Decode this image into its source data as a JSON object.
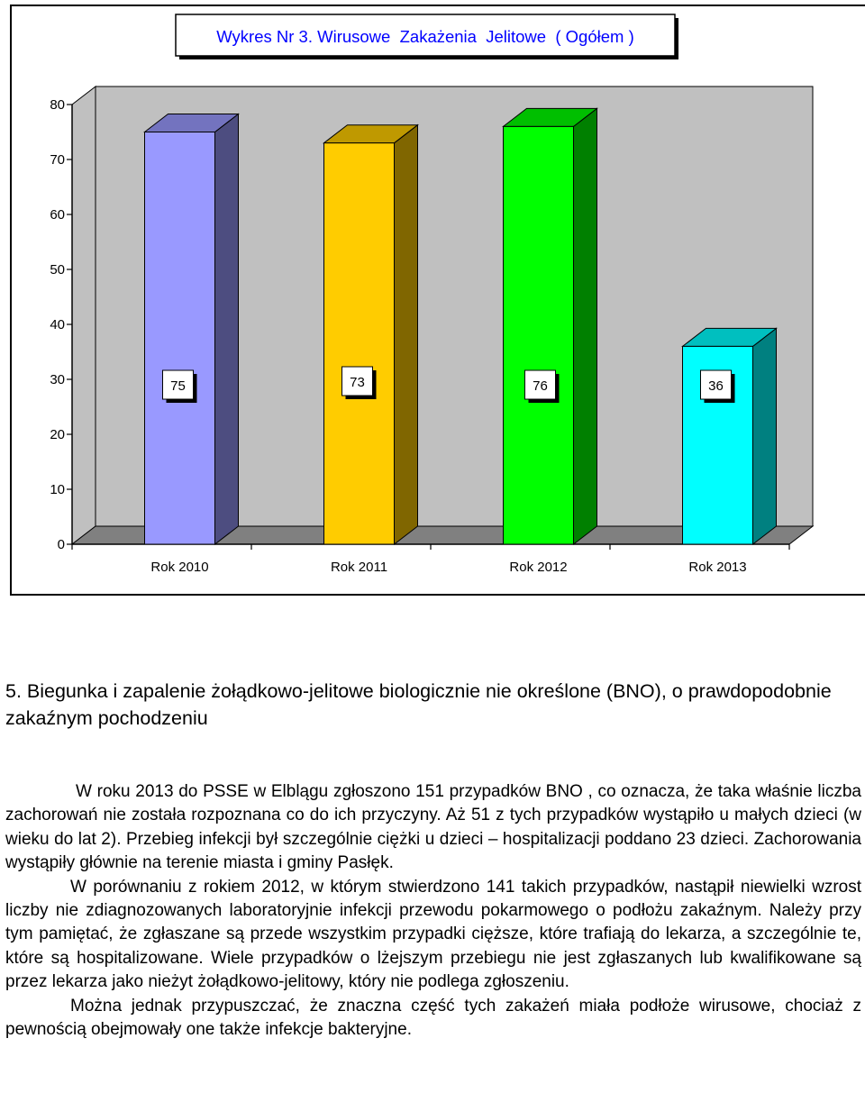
{
  "chart_data": {
    "type": "bar",
    "title": "Wykres Nr 3. Wirusowe  Zakażenia  Jelitowe  ( Ogółem )",
    "categories": [
      "Rok 2010",
      "Rok 2011",
      "Rok 2012",
      "Rok 2013"
    ],
    "values": [
      75,
      73,
      76,
      36
    ],
    "value_labels": [
      "75",
      "73",
      "76",
      "36"
    ],
    "ylim": [
      0,
      80
    ],
    "yticks": [
      "0",
      "10",
      "20",
      "30",
      "40",
      "50",
      "60",
      "70",
      "80"
    ],
    "grid": false,
    "legend": "none",
    "three_d": true,
    "colors": {
      "plot_wall": "#c0c0c0",
      "floor": "#808080",
      "bar_fronts": [
        "#9999ff",
        "#ffcc00",
        "#00ff00",
        "#00ffff"
      ],
      "bar_sides": [
        "#4d4d80",
        "#806600",
        "#008000",
        "#008080"
      ],
      "bar_tops": [
        "#7373bf",
        "#bf9900",
        "#00bf00",
        "#00bfbf"
      ],
      "title_text": "#0000ff"
    }
  },
  "section": {
    "heading": "5. Biegunka i zapalenie żołądkowo-jelitowe biologicznie nie określone (BNO), o prawdopodobnie zakaźnym pochodzeniu",
    "paragraphs": [
      "W roku 2013 do PSSE w Elblągu zgłoszono 151 przypadków BNO , co oznacza, że taka właśnie liczba zachorowań nie została rozpoznana co do ich przyczyny. Aż 51 z tych przypadków wystąpiło u małych dzieci (w wieku do lat 2). Przebieg infekcji był szczególnie ciężki u dzieci – hospitalizacji poddano 23 dzieci. Zachorowania wystąpiły głównie na terenie miasta i gminy Pasłęk.",
      "W porównaniu z rokiem 2012, w którym stwierdzono 141 takich przypadków, nastąpił niewielki wzrost liczby nie zdiagnozowanych laboratoryjnie infekcji przewodu pokarmowego o podłożu zakaźnym. Należy przy tym pamiętać, że zgłaszane są przede wszystkim przypadki cięższe, które trafiają do lekarza, a szczególnie te, które są hospitalizowane. Wiele przypadków o lżejszym przebiegu nie jest zgłaszanych lub kwalifikowane są przez lekarza jako nieżyt żołądkowo-jelitowy, który nie podlega zgłoszeniu.",
      "Można jednak przypuszczać, że znaczna część tych zakażeń miała podłoże wirusowe, chociaż z pewnością obejmowały one także infekcje bakteryjne."
    ]
  }
}
